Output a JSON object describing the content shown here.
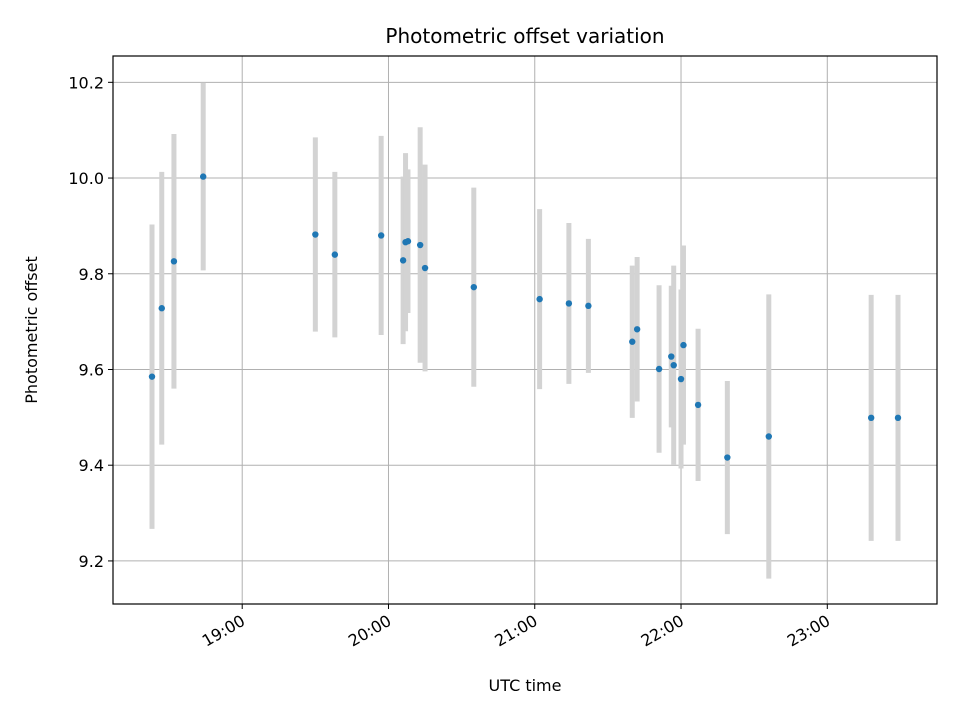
{
  "chart_data": {
    "type": "scatter",
    "title": "Photometric offset variation",
    "xlabel": "UTC time",
    "ylabel": "Photometric offset",
    "xlim": [
      "18:07",
      "23:45"
    ],
    "ylim": [
      9.11,
      10.255
    ],
    "x_ticks": [
      "19:00",
      "20:00",
      "21:00",
      "22:00",
      "23:00"
    ],
    "y_ticks": [
      "9.2",
      "9.4",
      "9.6",
      "9.8",
      "10.0",
      "10.2"
    ],
    "grid": true,
    "colors": {
      "point": "#1f77b4",
      "errorbar": "#d3d3d3",
      "grid": "#b0b0b0"
    },
    "points": [
      {
        "x": "18:23",
        "y": 9.585,
        "err": 0.318
      },
      {
        "x": "18:27",
        "y": 9.728,
        "err": 0.285
      },
      {
        "x": "18:32",
        "y": 9.826,
        "err": 0.266
      },
      {
        "x": "18:44",
        "y": 10.003,
        "err": 0.196
      },
      {
        "x": "19:30",
        "y": 9.882,
        "err": 0.203
      },
      {
        "x": "19:38",
        "y": 9.84,
        "err": 0.173
      },
      {
        "x": "19:57",
        "y": 9.88,
        "err": 0.208
      },
      {
        "x": "20:06",
        "y": 9.828,
        "err": 0.175
      },
      {
        "x": "20:07",
        "y": 9.866,
        "err": 0.186
      },
      {
        "x": "20:08",
        "y": 9.868,
        "err": 0.15
      },
      {
        "x": "20:13",
        "y": 9.86,
        "err": 0.246
      },
      {
        "x": "20:15",
        "y": 9.812,
        "err": 0.216
      },
      {
        "x": "20:35",
        "y": 9.772,
        "err": 0.208
      },
      {
        "x": "21:02",
        "y": 9.747,
        "err": 0.188
      },
      {
        "x": "21:14",
        "y": 9.738,
        "err": 0.168
      },
      {
        "x": "21:22",
        "y": 9.733,
        "err": 0.14
      },
      {
        "x": "21:40",
        "y": 9.658,
        "err": 0.159
      },
      {
        "x": "21:42",
        "y": 9.684,
        "err": 0.151
      },
      {
        "x": "21:51",
        "y": 9.601,
        "err": 0.175
      },
      {
        "x": "21:56",
        "y": 9.627,
        "err": 0.148
      },
      {
        "x": "21:57",
        "y": 9.609,
        "err": 0.208
      },
      {
        "x": "22:00",
        "y": 9.58,
        "err": 0.187
      },
      {
        "x": "22:01",
        "y": 9.651,
        "err": 0.208
      },
      {
        "x": "22:07",
        "y": 9.526,
        "err": 0.159
      },
      {
        "x": "22:19",
        "y": 9.416,
        "err": 0.16
      },
      {
        "x": "22:36",
        "y": 9.46,
        "err": 0.297
      },
      {
        "x": "23:18",
        "y": 9.499,
        "err": 0.257
      },
      {
        "x": "23:29",
        "y": 9.499,
        "err": 0.257
      }
    ]
  }
}
